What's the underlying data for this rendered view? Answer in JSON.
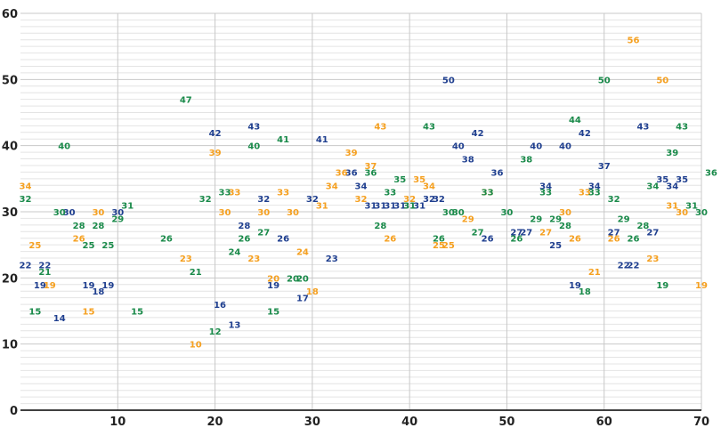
{
  "colors": {
    "series1": "#1f3f8f",
    "series2": "#f5a020",
    "series3": "#1a8a4a",
    "major_grid": "#c8c8c8",
    "minor_grid": "#e4e4e4",
    "axis": "#000000"
  },
  "chart_data": {
    "type": "scatter",
    "title": "",
    "xlabel": "",
    "ylabel": "",
    "xlim": [
      0,
      70
    ],
    "ylim": [
      0,
      60
    ],
    "x_ticks": [
      10,
      20,
      30,
      40,
      50,
      60,
      70
    ],
    "y_ticks": [
      0,
      10,
      20,
      30,
      40,
      50,
      60
    ],
    "grid": true,
    "legend": "none",
    "marker": "value label",
    "series": [
      {
        "color_key": "series1",
        "points": [
          [
            0.5,
            22
          ],
          [
            2.5,
            22
          ],
          [
            2,
            19
          ],
          [
            4,
            14
          ],
          [
            5,
            30
          ],
          [
            7,
            19
          ],
          [
            8,
            18
          ],
          [
            9,
            19
          ],
          [
            10,
            30
          ],
          [
            20,
            42
          ],
          [
            20.5,
            16
          ],
          [
            22,
            13
          ],
          [
            23,
            28
          ],
          [
            24,
            43
          ],
          [
            25,
            32
          ],
          [
            26,
            19
          ],
          [
            27,
            26
          ],
          [
            29,
            17
          ],
          [
            30,
            32
          ],
          [
            31,
            41
          ],
          [
            32,
            23
          ],
          [
            34,
            36
          ],
          [
            35,
            34
          ],
          [
            36,
            31
          ],
          [
            37,
            31
          ],
          [
            38,
            31
          ],
          [
            39,
            31
          ],
          [
            40,
            31
          ],
          [
            41,
            31
          ],
          [
            42,
            32
          ],
          [
            43,
            32
          ],
          [
            44,
            50
          ],
          [
            45,
            40
          ],
          [
            46,
            38
          ],
          [
            47,
            42
          ],
          [
            48,
            26
          ],
          [
            49,
            36
          ],
          [
            51,
            27
          ],
          [
            52,
            27
          ],
          [
            53,
            40
          ],
          [
            54,
            34
          ],
          [
            55,
            25
          ],
          [
            56,
            40
          ],
          [
            57,
            19
          ],
          [
            58,
            42
          ],
          [
            59,
            34
          ],
          [
            60,
            37
          ],
          [
            61,
            27
          ],
          [
            62,
            22
          ],
          [
            63,
            22
          ],
          [
            64,
            43
          ],
          [
            65,
            27
          ],
          [
            66,
            35
          ],
          [
            67,
            34
          ],
          [
            68,
            35
          ]
        ]
      },
      {
        "color_key": "series2",
        "points": [
          [
            0.5,
            34
          ],
          [
            1.5,
            25
          ],
          [
            3,
            19
          ],
          [
            6,
            26
          ],
          [
            7,
            15
          ],
          [
            8,
            30
          ],
          [
            17,
            23
          ],
          [
            18,
            10
          ],
          [
            20,
            39
          ],
          [
            21,
            30
          ],
          [
            22,
            33
          ],
          [
            24,
            23
          ],
          [
            25,
            30
          ],
          [
            26,
            20
          ],
          [
            27,
            33
          ],
          [
            28,
            30
          ],
          [
            29,
            24
          ],
          [
            30,
            18
          ],
          [
            31,
            31
          ],
          [
            32,
            34
          ],
          [
            33,
            36
          ],
          [
            34,
            39
          ],
          [
            35,
            32
          ],
          [
            36,
            37
          ],
          [
            37,
            43
          ],
          [
            38,
            26
          ],
          [
            40,
            32
          ],
          [
            41,
            35
          ],
          [
            42,
            34
          ],
          [
            43,
            25
          ],
          [
            44,
            25
          ],
          [
            46,
            29
          ],
          [
            48,
            33
          ],
          [
            54,
            27
          ],
          [
            56,
            30
          ],
          [
            57,
            26
          ],
          [
            58,
            33
          ],
          [
            59,
            21
          ],
          [
            61,
            26
          ],
          [
            63,
            56
          ],
          [
            65,
            23
          ],
          [
            66,
            50
          ],
          [
            67,
            31
          ],
          [
            68,
            30
          ],
          [
            70,
            19
          ]
        ]
      },
      {
        "color_key": "series3",
        "points": [
          [
            0.5,
            32
          ],
          [
            1.5,
            15
          ],
          [
            2.5,
            21
          ],
          [
            4,
            30
          ],
          [
            4.5,
            40
          ],
          [
            6,
            28
          ],
          [
            7,
            25
          ],
          [
            8,
            28
          ],
          [
            9,
            25
          ],
          [
            10,
            29
          ],
          [
            11,
            31
          ],
          [
            12,
            15
          ],
          [
            15,
            26
          ],
          [
            17,
            47
          ],
          [
            18,
            21
          ],
          [
            19,
            32
          ],
          [
            20,
            12
          ],
          [
            21,
            33
          ],
          [
            22,
            24
          ],
          [
            23,
            26
          ],
          [
            24,
            40
          ],
          [
            25,
            27
          ],
          [
            26,
            15
          ],
          [
            27,
            41
          ],
          [
            28,
            20
          ],
          [
            29,
            20
          ],
          [
            36,
            36
          ],
          [
            37,
            28
          ],
          [
            38,
            33
          ],
          [
            39,
            35
          ],
          [
            40,
            31
          ],
          [
            42,
            43
          ],
          [
            43,
            26
          ],
          [
            44,
            30
          ],
          [
            45,
            30
          ],
          [
            47,
            27
          ],
          [
            48,
            33
          ],
          [
            50,
            30
          ],
          [
            51,
            26
          ],
          [
            52,
            38
          ],
          [
            53,
            29
          ],
          [
            54,
            33
          ],
          [
            55,
            29
          ],
          [
            56,
            28
          ],
          [
            57,
            44
          ],
          [
            58,
            18
          ],
          [
            59,
            33
          ],
          [
            60,
            50
          ],
          [
            61,
            32
          ],
          [
            62,
            29
          ],
          [
            63,
            26
          ],
          [
            64,
            28
          ],
          [
            65,
            34
          ],
          [
            66,
            19
          ],
          [
            67,
            39
          ],
          [
            68,
            43
          ],
          [
            69,
            31
          ],
          [
            70,
            30
          ],
          [
            71,
            36
          ]
        ]
      }
    ]
  }
}
